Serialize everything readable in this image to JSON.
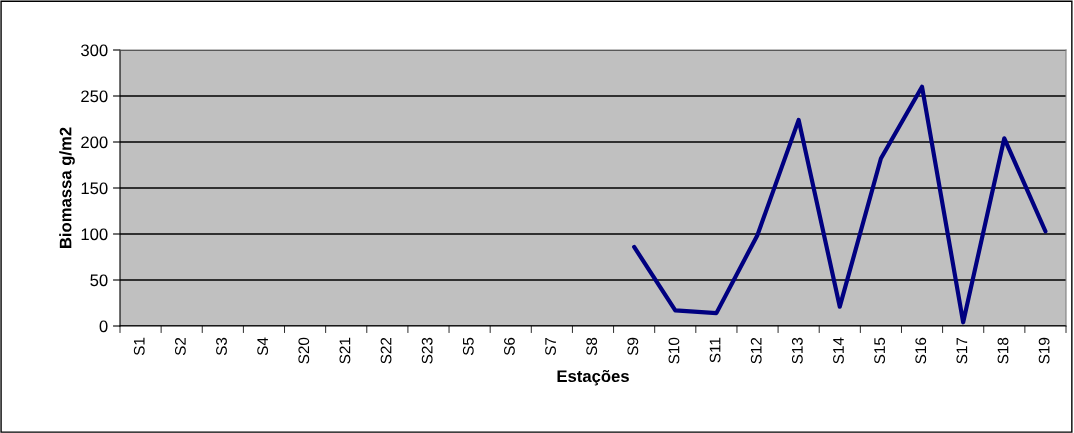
{
  "chart_data": {
    "type": "line",
    "xlabel": "Estações",
    "ylabel": "Biomassa g/m2",
    "categories": [
      "S1",
      "S2",
      "S3",
      "S4",
      "S20",
      "S21",
      "S22",
      "S23",
      "S5",
      "S6",
      "S7",
      "S8",
      "S9",
      "S10",
      "S11",
      "S12",
      "S13",
      "S14",
      "S15",
      "S16",
      "S17",
      "S18",
      "S19"
    ],
    "series": [
      {
        "color": "#000080",
        "values": [
          null,
          null,
          null,
          null,
          null,
          null,
          null,
          null,
          null,
          null,
          null,
          null,
          86,
          17,
          14,
          99,
          224,
          21,
          182,
          260,
          4,
          204,
          103
        ]
      }
    ],
    "ylim": [
      0,
      300
    ],
    "yticks": [
      0,
      50,
      100,
      150,
      200,
      250,
      300
    ],
    "grid": "y",
    "marker": "none",
    "line_style": "solid",
    "legend": false
  }
}
